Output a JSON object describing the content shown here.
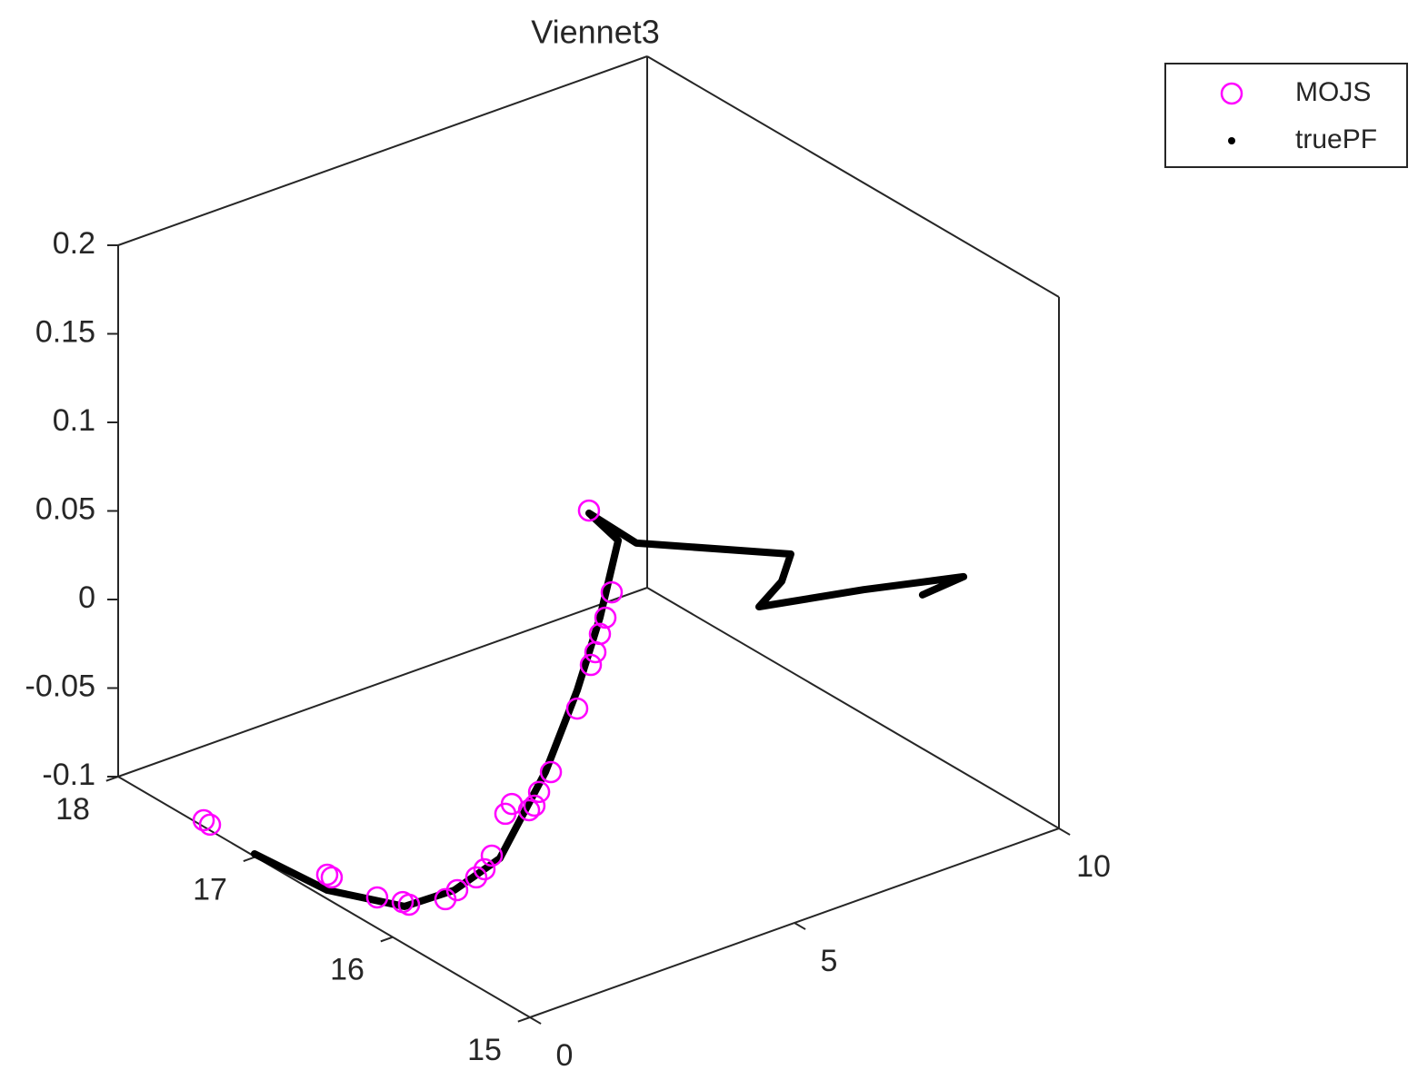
{
  "chart_data": {
    "type": "scatter3d",
    "title": "Viennet3",
    "xlim": [
      0,
      10
    ],
    "xticks": [
      0,
      5,
      10
    ],
    "ylim": [
      15,
      18
    ],
    "yticks": [
      15,
      16,
      17,
      18
    ],
    "zlim": [
      -0.1,
      0.2
    ],
    "zticks": [
      -0.1,
      -0.05,
      0,
      0.05,
      0.1,
      0.15,
      0.2
    ],
    "legend": "outside-top-right",
    "series": [
      {
        "name": "MOJS",
        "color": "#ff00ff",
        "marker": "circle",
        "x": [
          1.5,
          2,
          2,
          2,
          2,
          2,
          1,
          0.5,
          0.5,
          0.5,
          0.5,
          0,
          0,
          0,
          0,
          0,
          0,
          0,
          0,
          0,
          0,
          0,
          0,
          0,
          0
        ],
        "y": [
          15.148,
          15.175,
          15.221,
          15.261,
          15.294,
          15.327,
          15.041,
          15.04,
          15.126,
          15.16,
          15.199,
          15.132,
          15.179,
          15.278,
          15.331,
          15.391,
          15.53,
          15.616,
          15.881,
          15.927,
          16.113,
          16.444,
          16.477,
          17.331,
          17.377
        ],
        "z": [
          0.1634,
          0.1107,
          0.0943,
          0.0833,
          0.0715,
          0.0628,
          0.0618,
          0.0313,
          0.0162,
          0.0069,
          0.0026,
          0.0145,
          0.0068,
          -0.0213,
          -0.0314,
          -0.0387,
          -0.0522,
          -0.0612,
          -0.0763,
          -0.0769,
          -0.0827,
          -0.0864,
          -0.0864,
          -0.0968,
          -0.0964
        ]
      },
      {
        "name": "truePF",
        "color": "#000000",
        "marker": "point",
        "x": [
          0,
          0,
          0,
          0,
          0,
          0.5,
          1,
          1.5,
          2,
          1.5,
          3,
          6,
          6.5,
          7,
          9,
          10,
          9.5
        ],
        "y": [
          17.007,
          16.477,
          15.914,
          15.55,
          15.219,
          15.08,
          15.041,
          15.068,
          15.128,
          15.148,
          15.381,
          15.412,
          15.671,
          16.029,
          16.038,
          15.695,
          15.801
        ],
        "z": [
          -0.0986,
          -0.0951,
          -0.0788,
          -0.0531,
          -0.0202,
          0.0295,
          0.0721,
          0.1066,
          0.1421,
          0.1619,
          0.1185,
          0.0789,
          0.0464,
          0.0105,
          -0.0016,
          0.0106,
          0.0009
        ]
      }
    ]
  }
}
